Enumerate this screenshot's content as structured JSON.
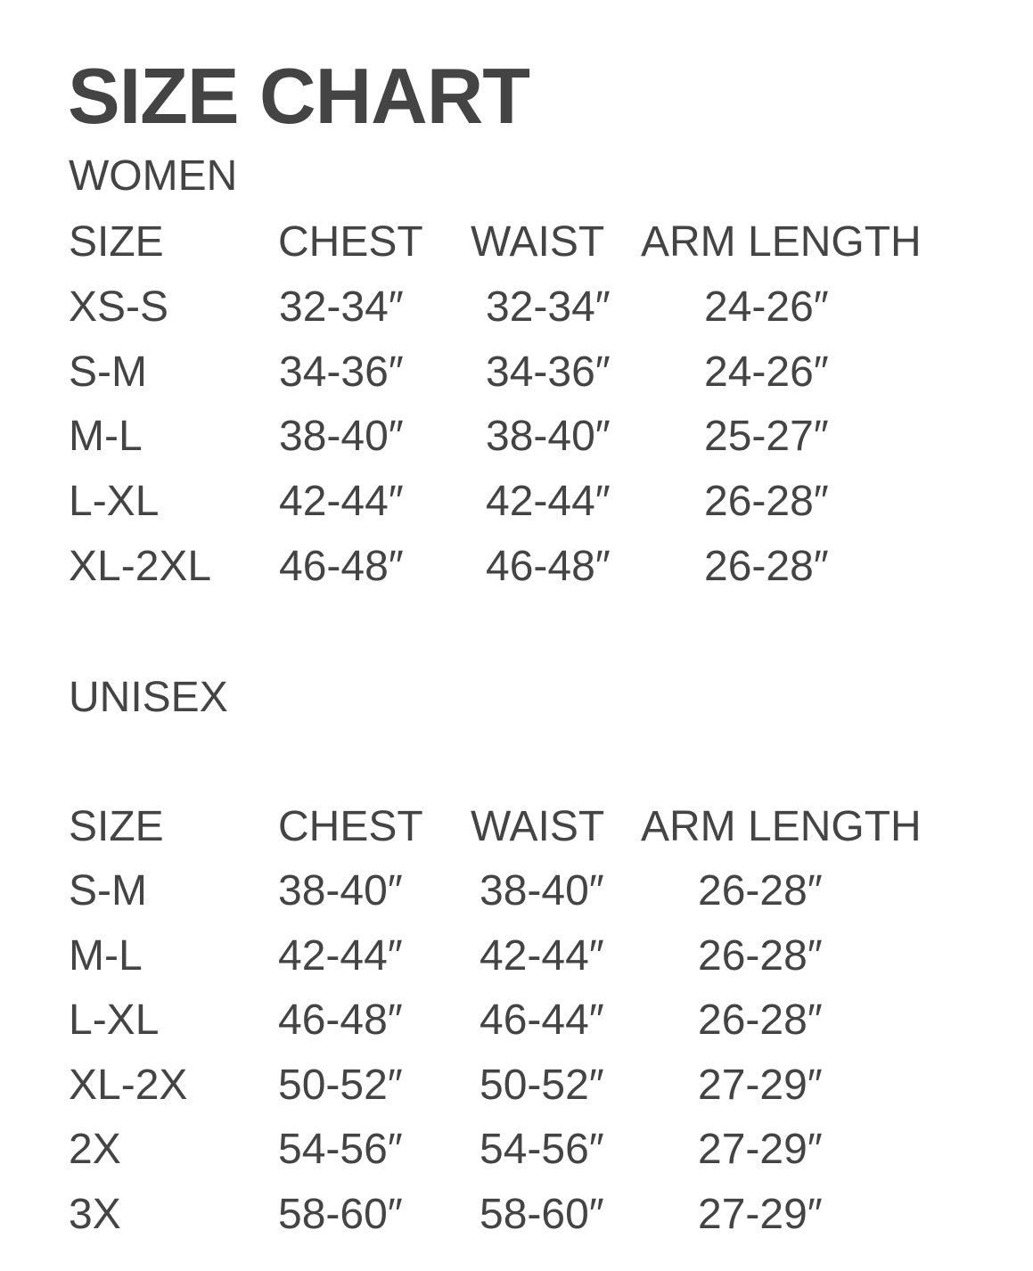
{
  "title": "SIZE CHART",
  "colors": {
    "text": "#444444",
    "background": "#ffffff"
  },
  "tables": [
    {
      "label": "WOMEN",
      "headers": [
        "SIZE",
        "CHEST",
        "WAIST",
        "ARM LENGTH"
      ],
      "rows": [
        [
          "XS-S",
          "32-34″",
          "32-34″",
          "24-26″"
        ],
        [
          "S-M",
          "34-36″",
          "34-36″",
          "24-26″"
        ],
        [
          "M-L",
          "38-40″",
          "38-40″",
          "25-27″"
        ],
        [
          "L-XL",
          "42-44″",
          "42-44″",
          "26-28″"
        ],
        [
          "XL-2XL",
          "46-48″",
          "46-48″",
          "26-28″"
        ]
      ]
    },
    {
      "label": "UNISEX",
      "headers": [
        "SIZE",
        "CHEST",
        "WAIST",
        "ARM LENGTH"
      ],
      "rows": [
        [
          "S-M",
          "38-40″",
          "38-40″",
          "26-28″"
        ],
        [
          "M-L",
          "42-44″",
          "42-44″",
          "26-28″"
        ],
        [
          "L-XL",
          "46-48″",
          "46-44″",
          "26-28″"
        ],
        [
          "XL-2X",
          "50-52″",
          "50-52″",
          "27-29″"
        ],
        [
          "2X",
          "54-56″",
          "54-56″",
          "27-29″"
        ],
        [
          "3X",
          "58-60″",
          "58-60″",
          "27-29″"
        ]
      ]
    }
  ]
}
